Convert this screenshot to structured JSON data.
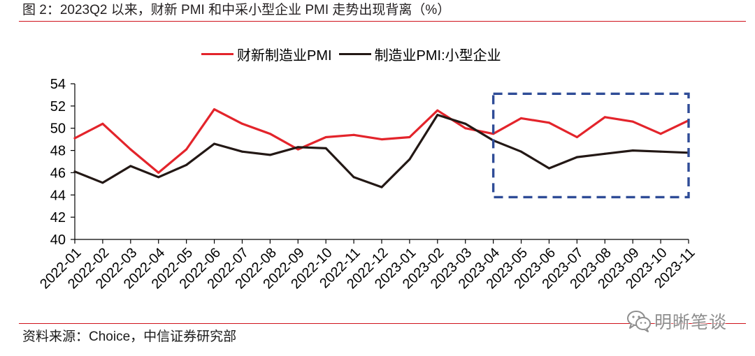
{
  "figure": {
    "title": "图 2：2023Q2 以来，财新 PMI 和中采小型企业 PMI 走势出现背离（%）",
    "source": "资料来源：Choice，中信证券研究部",
    "watermark": "明晰笔谈",
    "watermark_icon": "wechat-icon",
    "rule_color": "#d0121b"
  },
  "chart_data": {
    "type": "line",
    "categories": [
      "2022-01",
      "2022-02",
      "2022-03",
      "2022-04",
      "2022-05",
      "2022-06",
      "2022-07",
      "2022-08",
      "2022-09",
      "2022-10",
      "2022-11",
      "2022-12",
      "2023-01",
      "2023-02",
      "2023-03",
      "2023-04",
      "2023-05",
      "2023-06",
      "2023-07",
      "2023-08",
      "2023-09",
      "2023-10",
      "2023-11"
    ],
    "series": [
      {
        "name": "财新制造业PMI",
        "color": "#e3242b",
        "values": [
          49.1,
          50.4,
          48.1,
          46.0,
          48.1,
          51.7,
          50.4,
          49.5,
          48.1,
          49.2,
          49.4,
          49.0,
          49.2,
          51.6,
          50.0,
          49.5,
          50.9,
          50.5,
          49.2,
          51.0,
          50.6,
          49.5,
          50.7
        ]
      },
      {
        "name": "制造业PMI:小型企业",
        "color": "#231815",
        "values": [
          46.1,
          45.1,
          46.6,
          45.6,
          46.7,
          48.6,
          47.9,
          47.6,
          48.3,
          48.2,
          45.6,
          44.7,
          47.2,
          51.2,
          50.4,
          48.9,
          47.9,
          46.4,
          47.4,
          47.7,
          48.0,
          47.9,
          47.8
        ]
      }
    ],
    "ylim": [
      40,
      54
    ],
    "yticks": [
      40,
      42,
      44,
      46,
      48,
      50,
      52,
      54
    ],
    "grid": false,
    "legend": "top-center",
    "highlight_box": {
      "x_start": "2023-04",
      "x_end": "2023-11",
      "ylim": [
        43.8,
        53.1
      ],
      "color": "#2f4c97"
    }
  }
}
